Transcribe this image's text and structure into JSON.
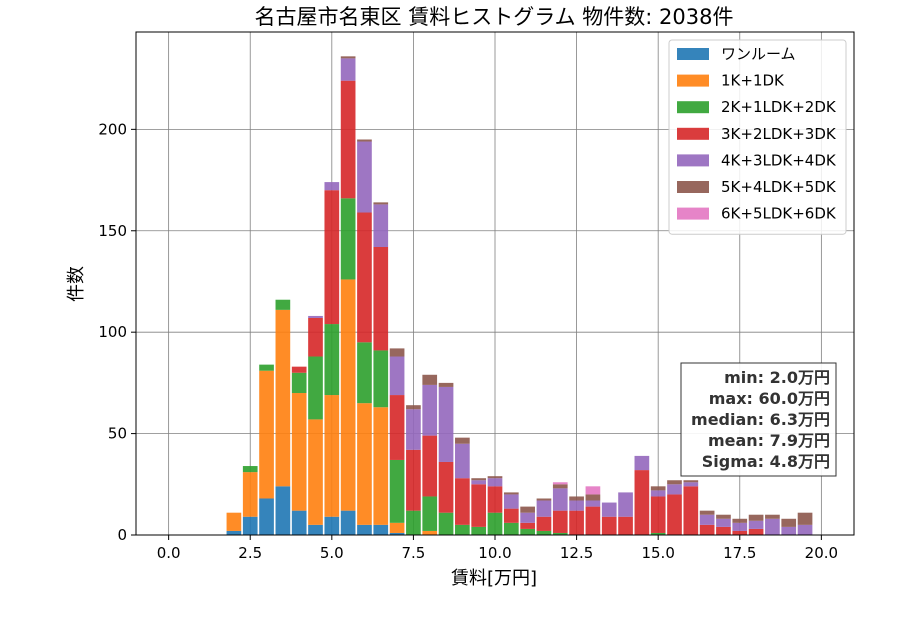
{
  "chart_data": {
    "type": "bar",
    "stacked": true,
    "title": "名古屋市名東区 賃料ヒストグラム 物件数: 2038件",
    "xlabel": "賃料[万円]",
    "ylabel": "件数",
    "xlim": [
      -1.0,
      21.0
    ],
    "ylim": [
      0,
      248
    ],
    "bin_width": 0.5,
    "xticks": [
      0.0,
      2.5,
      5.0,
      7.5,
      10.0,
      12.5,
      15.0,
      17.5,
      20.0
    ],
    "xtick_labels": [
      "0.0",
      "2.5",
      "5.0",
      "7.5",
      "10.0",
      "12.5",
      "15.0",
      "17.5",
      "20.0"
    ],
    "yticks": [
      0,
      50,
      100,
      150,
      200
    ],
    "ytick_labels": [
      "0",
      "50",
      "100",
      "150",
      "200"
    ],
    "grid": true,
    "legend_position": "top-right",
    "x": [
      2.0,
      2.5,
      3.0,
      3.5,
      4.0,
      4.5,
      5.0,
      5.5,
      6.0,
      6.5,
      7.0,
      7.5,
      8.0,
      8.5,
      9.0,
      9.5,
      10.0,
      10.5,
      11.0,
      11.5,
      12.0,
      12.5,
      13.0,
      13.5,
      14.0,
      14.5,
      15.0,
      15.5,
      16.0,
      16.5,
      17.0,
      17.5,
      18.0,
      18.5,
      19.0,
      19.5
    ],
    "series": [
      {
        "name": "ワンルーム",
        "color": "#1f77b4",
        "values": [
          2,
          9,
          18,
          24,
          12,
          5,
          9,
          12,
          5,
          5,
          1,
          0,
          0,
          0,
          0,
          0,
          0,
          0,
          0,
          0,
          0,
          0,
          0,
          0,
          0,
          0,
          0,
          0,
          0,
          0,
          0,
          0,
          0,
          0,
          0,
          0
        ]
      },
      {
        "name": "1K+1DK",
        "color": "#ff7f0e",
        "values": [
          9,
          22,
          63,
          87,
          58,
          52,
          60,
          114,
          60,
          58,
          5,
          0,
          2,
          0,
          0,
          0,
          0,
          0,
          0,
          0,
          0,
          0,
          0,
          0,
          0,
          0,
          0,
          0,
          0,
          0,
          0,
          0,
          0,
          0,
          0,
          0
        ]
      },
      {
        "name": "2K+1LDK+2DK",
        "color": "#2ca02c",
        "values": [
          0,
          3,
          3,
          5,
          10,
          31,
          35,
          40,
          30,
          28,
          31,
          12,
          17,
          11,
          5,
          4,
          11,
          6,
          3,
          2,
          1,
          0,
          0,
          0,
          0,
          0,
          1,
          0,
          0,
          0,
          0,
          0,
          0,
          0,
          0,
          0
        ]
      },
      {
        "name": "3K+2LDK+3DK",
        "color": "#d62728",
        "values": [
          0,
          0,
          0,
          0,
          3,
          19,
          66,
          58,
          64,
          51,
          32,
          30,
          30,
          25,
          23,
          21,
          13,
          7,
          3,
          7,
          11,
          12,
          14,
          9,
          9,
          32,
          18,
          20,
          24,
          5,
          4,
          2,
          3,
          0,
          0,
          0
        ]
      },
      {
        "name": "4K+3LDK+4DK",
        "color": "#9467bd",
        "values": [
          0,
          0,
          0,
          0,
          0,
          1,
          4,
          11,
          35,
          21,
          19,
          20,
          25,
          37,
          17,
          2,
          4,
          7,
          5,
          8,
          11,
          5,
          3,
          7,
          12,
          7,
          3,
          5,
          2,
          5,
          4,
          4,
          4,
          8,
          4,
          5
        ]
      },
      {
        "name": "5K+4LDK+5DK",
        "color": "#8c564b",
        "values": [
          0,
          0,
          0,
          0,
          0,
          0,
          0,
          1,
          1,
          1,
          4,
          2,
          5,
          2,
          3,
          1,
          1,
          1,
          3,
          1,
          2,
          2,
          3,
          0,
          0,
          0,
          2,
          2,
          1,
          2,
          2,
          2,
          3,
          2,
          4,
          6
        ]
      },
      {
        "name": "6K+5LDK+6DK",
        "color": "#e377c2",
        "values": [
          0,
          0,
          0,
          0,
          0,
          0,
          0,
          0,
          0,
          0,
          0,
          0,
          0,
          0,
          0,
          0,
          0,
          0,
          0,
          0,
          1,
          0,
          4,
          0,
          0,
          0,
          0,
          0,
          0,
          0,
          0,
          0,
          0,
          0,
          0,
          0
        ]
      }
    ],
    "annotation": {
      "lines": [
        "min: 2.0万円",
        "max: 60.0万円",
        "median: 6.3万円",
        "mean: 7.9万円",
        "Sigma: 4.8万円"
      ],
      "position": "right"
    }
  }
}
